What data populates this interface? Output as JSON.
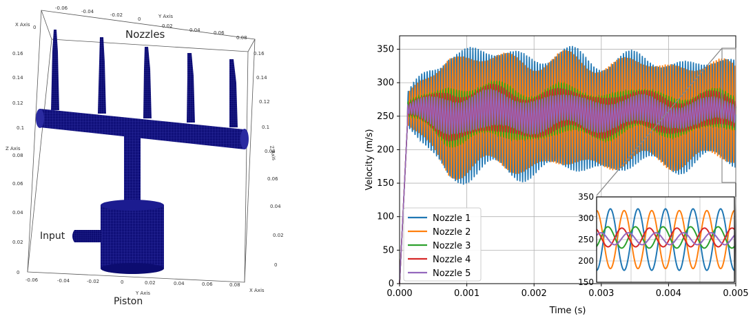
{
  "left_figure": {
    "labels": {
      "nozzles": "Nozzles",
      "input": "Input",
      "piston": "Piston"
    },
    "axes": {
      "x_axis_title": "X Axis",
      "y_axis_title": "Y Axis",
      "z_axis_title": "Z Axis",
      "y_ticks_top": [
        "-0.06",
        "-0.04",
        "-0.02",
        "0",
        "0.02",
        "0.04",
        "0.06",
        "0.08"
      ],
      "y_ticks_bottom": [
        "-0.06",
        "-0.04",
        "-0.02",
        "0",
        "0.02",
        "0.04",
        "0.06",
        "0.08"
      ],
      "z_ticks_left": [
        "0",
        "0.02",
        "0.04",
        "0.06",
        "0.08",
        "0.1",
        "0.12",
        "0.14",
        "0.16"
      ],
      "z_ticks_right": [
        "0",
        "0.02",
        "0.04",
        "0.06",
        "0.08",
        "0.1",
        "0.12",
        "0.14",
        "0.16"
      ],
      "x_ticks_top": [
        "0"
      ]
    },
    "mesh_color": "#0d0d80"
  },
  "chart_data": [
    {
      "type": "line",
      "title": "",
      "xlabel": "Time (s)",
      "ylabel": "Velocity (m/s)",
      "xlim": [
        0,
        0.005
      ],
      "ylim": [
        0,
        370
      ],
      "xticks": [
        "0.000",
        "0.001",
        "0.002",
        "0.003",
        "0.004",
        "0.005"
      ],
      "yticks": [
        "0",
        "50",
        "100",
        "150",
        "200",
        "250",
        "300",
        "350"
      ],
      "grid": true,
      "legend_position": "lower-left",
      "series": [
        {
          "name": "Nozzle 1",
          "color": "#1f77b4",
          "mean": 255,
          "amp_start": 95,
          "amp_end": 72,
          "phase": 0.0
        },
        {
          "name": "Nozzle 2",
          "color": "#ff7f0e",
          "mean": 255,
          "amp_start": 85,
          "amp_end": 68,
          "phase": 3.14159
        },
        {
          "name": "Nozzle 3",
          "color": "#2ca02c",
          "mean": 255,
          "amp_start": 42,
          "amp_end": 25,
          "phase": 0.5
        },
        {
          "name": "Nozzle 4",
          "color": "#d62728",
          "mean": 255,
          "amp_start": 35,
          "amp_end": 22,
          "phase": 2.6
        },
        {
          "name": "Nozzle 5",
          "color": "#9467bd",
          "mean": 255,
          "amp_start": 28,
          "amp_end": 14,
          "phase": 1.57
        }
      ],
      "oscillation_period_s": 4e-05,
      "startup_peak": {
        "t": 0.00012,
        "v": 245
      }
    },
    {
      "type": "line",
      "title": "",
      "inset_of": 0,
      "xlim": [
        0.00475,
        0.005
      ],
      "ylim": [
        150,
        350
      ],
      "yticks": [
        "150",
        "200",
        "250",
        "300",
        "350"
      ],
      "grid": true,
      "series": [
        {
          "name": "Nozzle 1",
          "color": "#1f77b4",
          "mean": 250,
          "amp": 72,
          "phase": -1.57
        },
        {
          "name": "Nozzle 2",
          "color": "#ff7f0e",
          "mean": 250,
          "amp": 68,
          "phase": 1.57
        },
        {
          "name": "Nozzle 3",
          "color": "#2ca02c",
          "mean": 255,
          "amp": 25,
          "phase": -1.0
        },
        {
          "name": "Nozzle 4",
          "color": "#d62728",
          "mean": 255,
          "amp": 22,
          "phase": 2.1
        },
        {
          "name": "Nozzle 5",
          "color": "#9467bd",
          "mean": 252,
          "amp": 14,
          "phase": 0.6
        }
      ],
      "cycles_shown": 5
    }
  ]
}
